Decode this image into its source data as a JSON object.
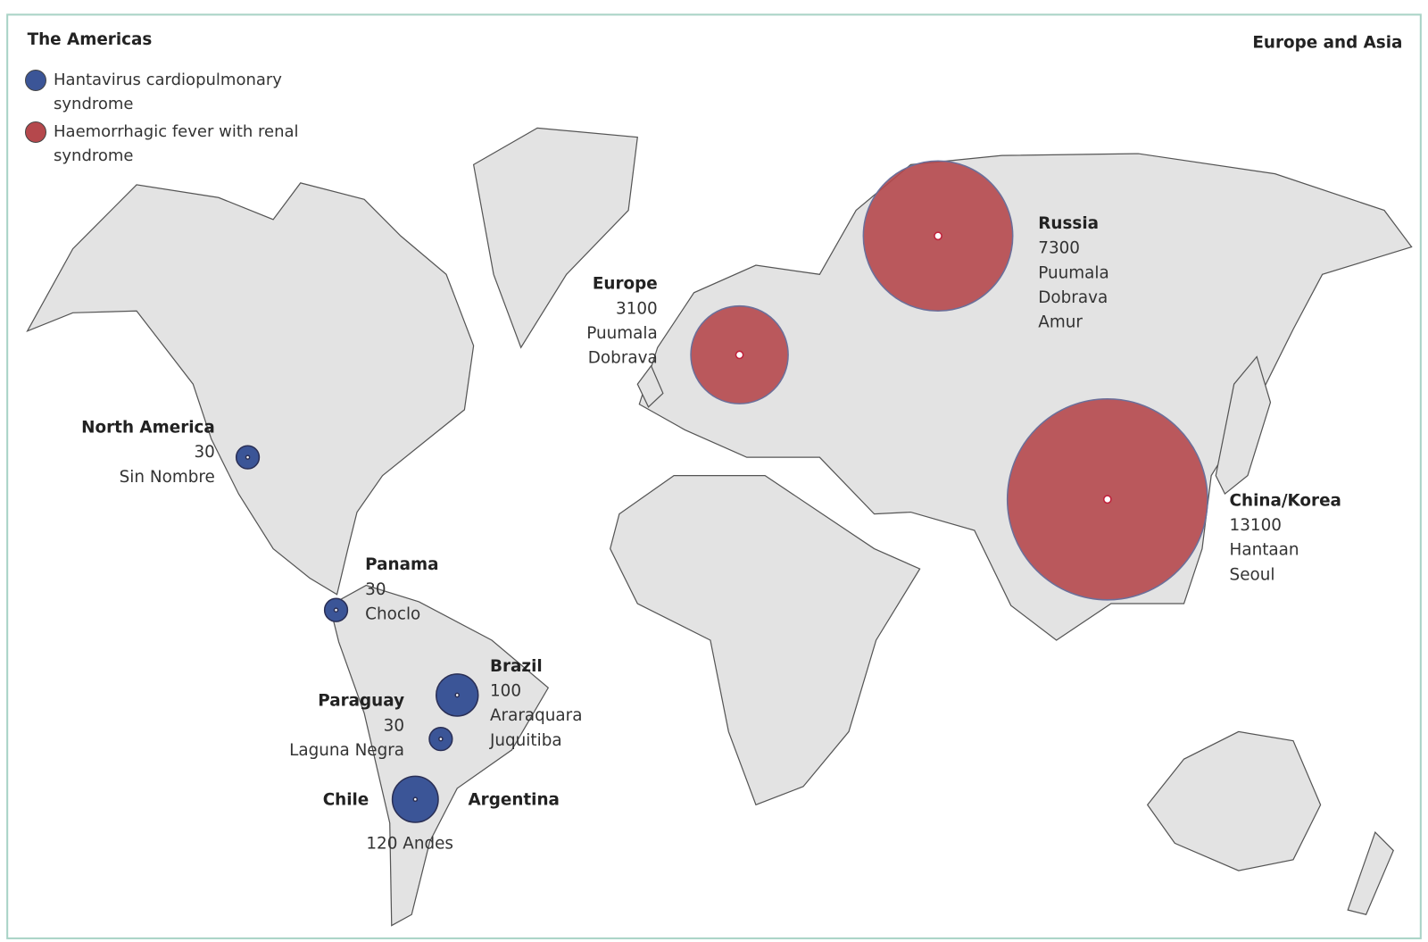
{
  "titles": {
    "left": "The Americas",
    "right": "Europe and Asia"
  },
  "legend": [
    {
      "label": "Hantavirus cardiopulmonary syndrome",
      "color": "#3b5597"
    },
    {
      "label": "Haemorrhagic fever with renal syndrome",
      "color": "#b5484c"
    }
  ],
  "regions": [
    {
      "names": [
        "North America"
      ],
      "cases": 30,
      "viruses": [
        "Sin Nombre"
      ],
      "syndrome": 0
    },
    {
      "names": [
        "Panama"
      ],
      "cases": 30,
      "viruses": [
        "Choclo"
      ],
      "syndrome": 0
    },
    {
      "names": [
        "Brazil"
      ],
      "cases": 100,
      "viruses": [
        "Araraquara",
        "Juquitiba"
      ],
      "syndrome": 0
    },
    {
      "names": [
        "Paraguay"
      ],
      "cases": 30,
      "viruses": [
        "Laguna Negra"
      ],
      "syndrome": 0
    },
    {
      "names": [
        "Chile",
        "Argentina"
      ],
      "cases": 120,
      "viruses": [
        "Andes"
      ],
      "syndrome": 0
    },
    {
      "names": [
        "Europe"
      ],
      "cases": 3100,
      "viruses": [
        "Puumala",
        "Dobrava"
      ],
      "syndrome": 1
    },
    {
      "names": [
        "Russia"
      ],
      "cases": 7300,
      "viruses": [
        "Puumala",
        "Dobrava",
        "Amur"
      ],
      "syndrome": 1
    },
    {
      "names": [
        "China/Korea"
      ],
      "cases": 13100,
      "viruses": [
        "Hantaan",
        "Seoul"
      ],
      "syndrome": 1
    }
  ]
}
